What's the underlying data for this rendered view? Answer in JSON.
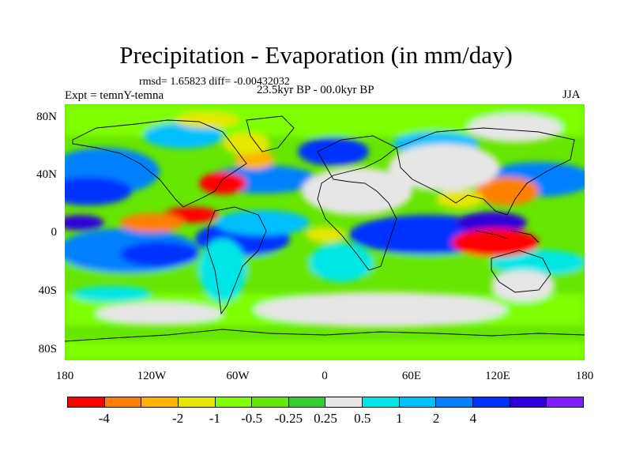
{
  "title": "Precipitation - Evaporation (in mm/day)",
  "stats_line": "rmsd= 1.65823  diff= -0.00432032",
  "experiment": "Expt = temnY-temna",
  "period": "23.5kyr BP - 00.0kyr BP",
  "season": "JJA",
  "lat_labels": [
    "80N",
    "40N",
    "0",
    "40S",
    "80S"
  ],
  "lon_labels": [
    "180",
    "120W",
    "60W",
    "0",
    "60E",
    "120E",
    "180"
  ],
  "colorbar": {
    "colors": [
      "#ff0000",
      "#ff8000",
      "#ffb300",
      "#e6e600",
      "#80ff00",
      "#66e600",
      "#33cc33",
      "#e6e6e6",
      "#00e6e6",
      "#00bfff",
      "#0080ff",
      "#0033ff",
      "#2f00d9",
      "#7f1fff"
    ],
    "labels": [
      "-4",
      "-2",
      "-1",
      "-0.5",
      "-0.25",
      "0.25",
      "0.5",
      "1",
      "2",
      "4"
    ]
  }
}
